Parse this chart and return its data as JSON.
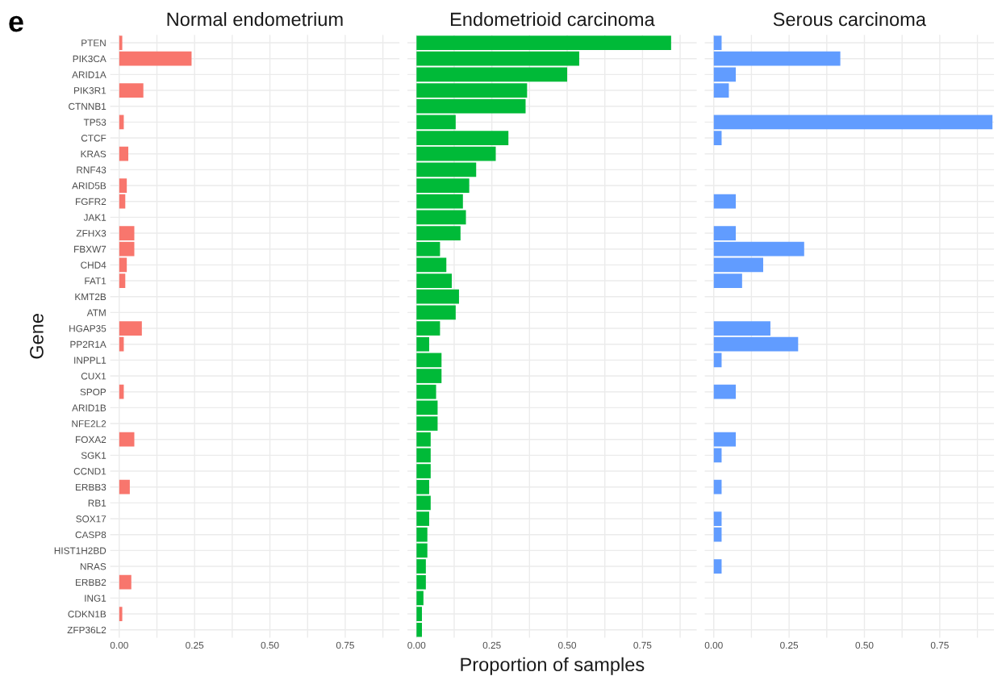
{
  "chart_data": [
    {
      "type": "bar",
      "orientation": "horizontal",
      "title": "Normal endometrium",
      "ylabel": "Gene",
      "annotations": [
        "e"
      ],
      "categories": [
        "PTEN",
        "PIK3CA",
        "ARID1A",
        "PIK3R1",
        "CTNNB1",
        "TP53",
        "CTCF",
        "KRAS",
        "RNF43",
        "ARID5B",
        "FGFR2",
        "JAK1",
        "ZFHX3",
        "FBXW7",
        "CHD4",
        "FAT1",
        "KMT2B",
        "ATM",
        "HGAP35",
        "PP2R1A",
        "INPPL1",
        "CUX1",
        "SPOP",
        "ARID1B",
        "NFE2L2",
        "FOXA2",
        "SGK1",
        "CCND1",
        "ERBB3",
        "RB1",
        "SOX17",
        "CASP8",
        "HIST1H2BD",
        "NRAS",
        "ERBB2",
        "ING1",
        "CDKN1B",
        "ZFP36L2"
      ],
      "color": "#f8766d",
      "values": [
        0.01,
        0.24,
        null,
        0.08,
        null,
        0.015,
        null,
        0.03,
        null,
        0.025,
        0.02,
        null,
        0.05,
        0.05,
        0.025,
        0.02,
        null,
        null,
        0.075,
        0.015,
        null,
        null,
        0.015,
        null,
        null,
        0.05,
        null,
        null,
        0.035,
        null,
        null,
        null,
        null,
        null,
        0.04,
        null,
        0.01,
        null
      ],
      "xlim": [
        -0.03,
        0.93
      ],
      "xticks": [
        {
          "value": 0,
          "label": "0.00"
        },
        {
          "value": 0.25,
          "label": "0.25"
        },
        {
          "value": 0.5,
          "label": "0.50"
        },
        {
          "value": 0.75,
          "label": "0.75"
        }
      ],
      "grid": true
    },
    {
      "type": "bar",
      "orientation": "horizontal",
      "title": "Endometrioid carcinoma",
      "xlabel": "Proportion of samples",
      "tick_labels": "x",
      "color": "#00ba38",
      "values": [
        0.845,
        0.54,
        0.5,
        0.367,
        0.362,
        0.13,
        0.305,
        0.263,
        0.198,
        0.175,
        0.154,
        0.164,
        0.146,
        0.078,
        0.099,
        0.117,
        0.141,
        0.13,
        0.078,
        0.042,
        0.083,
        0.083,
        0.065,
        0.07,
        0.07,
        0.047,
        0.047,
        0.047,
        0.042,
        0.047,
        0.042,
        0.036,
        0.036,
        0.031,
        0.031,
        0.023,
        0.018,
        0.018
      ],
      "xlim": [
        -0.03,
        0.93
      ],
      "xticks": [
        {
          "value": 0,
          "label": "0.00"
        },
        {
          "value": 0.25,
          "label": "0.25"
        },
        {
          "value": 0.5,
          "label": "0.50"
        },
        {
          "value": 0.75,
          "label": "0.75"
        }
      ],
      "grid": true
    },
    {
      "type": "bar",
      "orientation": "horizontal",
      "title": "Serous carcinoma",
      "tick_labels": "x",
      "color": "#619cff",
      "values": [
        0.026,
        0.42,
        0.073,
        0.05,
        null,
        0.925,
        0.026,
        null,
        null,
        null,
        0.073,
        null,
        0.073,
        0.3,
        0.164,
        0.094,
        null,
        null,
        0.188,
        0.28,
        0.026,
        null,
        0.073,
        null,
        null,
        0.073,
        0.026,
        null,
        0.026,
        null,
        0.026,
        0.026,
        null,
        0.026,
        null,
        null,
        null,
        null
      ],
      "xlim": [
        -0.03,
        0.93
      ],
      "xticks": [
        {
          "value": 0,
          "label": "0.00"
        },
        {
          "value": 0.25,
          "label": "0.25"
        },
        {
          "value": 0.5,
          "label": "0.50"
        },
        {
          "value": 0.75,
          "label": "0.75"
        }
      ],
      "grid": true
    }
  ]
}
